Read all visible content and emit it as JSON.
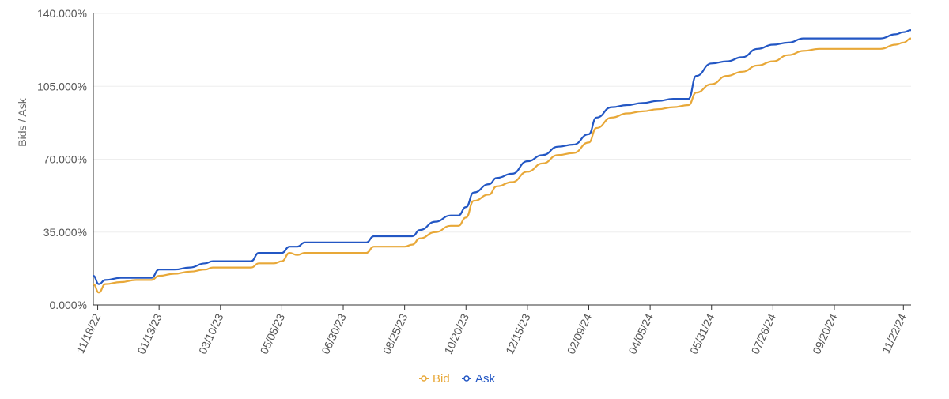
{
  "chart_data": {
    "type": "line",
    "ylabel": "Bids / Ask",
    "xlabel": "",
    "ylim": [
      0,
      140
    ],
    "yticks": [
      0,
      35,
      70,
      105,
      140
    ],
    "ytick_labels": [
      "0.000%",
      "35.000%",
      "70.000%",
      "105.000%",
      "140.000%"
    ],
    "x_range": [
      "2022-11-14",
      "2024-11-29"
    ],
    "xticks": [
      "2022-11-18",
      "2023-01-13",
      "2023-03-10",
      "2023-05-05",
      "2023-06-30",
      "2023-08-25",
      "2023-10-20",
      "2023-12-15",
      "2024-02-09",
      "2024-04-05",
      "2024-05-31",
      "2024-07-26",
      "2024-09-20",
      "2024-11-22"
    ],
    "xtick_labels": [
      "11/18/22",
      "01/13/23",
      "03/10/23",
      "05/05/23",
      "06/30/23",
      "08/25/23",
      "10/20/23",
      "12/15/23",
      "02/09/24",
      "04/05/24",
      "05/31/24",
      "07/26/24",
      "09/20/24",
      "11/22/24"
    ],
    "grid": "horizontal",
    "legend_position": "bottom-center",
    "series": [
      {
        "name": "Bid",
        "color": "#E8A838",
        "points": [
          [
            "2022-11-14",
            10
          ],
          [
            "2022-11-19",
            6
          ],
          [
            "2022-11-25",
            10
          ],
          [
            "2022-12-09",
            11
          ],
          [
            "2022-12-23",
            12
          ],
          [
            "2023-01-06",
            12
          ],
          [
            "2023-01-13",
            14
          ],
          [
            "2023-01-27",
            15
          ],
          [
            "2023-02-10",
            16
          ],
          [
            "2023-02-24",
            17
          ],
          [
            "2023-03-03",
            18
          ],
          [
            "2023-03-17",
            18
          ],
          [
            "2023-04-07",
            18
          ],
          [
            "2023-04-14",
            20
          ],
          [
            "2023-04-28",
            20
          ],
          [
            "2023-05-05",
            21
          ],
          [
            "2023-05-12",
            25
          ],
          [
            "2023-05-19",
            24
          ],
          [
            "2023-05-26",
            25
          ],
          [
            "2023-06-30",
            25
          ],
          [
            "2023-07-21",
            25
          ],
          [
            "2023-07-28",
            28
          ],
          [
            "2023-08-25",
            28
          ],
          [
            "2023-09-01",
            29
          ],
          [
            "2023-09-08",
            32
          ],
          [
            "2023-09-22",
            35
          ],
          [
            "2023-10-06",
            38
          ],
          [
            "2023-10-13",
            38
          ],
          [
            "2023-10-20",
            42
          ],
          [
            "2023-10-27",
            50
          ],
          [
            "2023-11-10",
            53
          ],
          [
            "2023-11-17",
            57
          ],
          [
            "2023-12-01",
            59
          ],
          [
            "2023-12-15",
            64
          ],
          [
            "2023-12-29",
            68
          ],
          [
            "2024-01-12",
            72
          ],
          [
            "2024-01-26",
            73
          ],
          [
            "2024-02-09",
            78
          ],
          [
            "2024-02-16",
            85
          ],
          [
            "2024-03-01",
            90
          ],
          [
            "2024-03-15",
            92
          ],
          [
            "2024-03-29",
            93
          ],
          [
            "2024-04-12",
            94
          ],
          [
            "2024-04-26",
            95
          ],
          [
            "2024-05-10",
            96
          ],
          [
            "2024-05-17",
            102
          ],
          [
            "2024-05-31",
            106
          ],
          [
            "2024-06-14",
            110
          ],
          [
            "2024-06-28",
            112
          ],
          [
            "2024-07-12",
            115
          ],
          [
            "2024-07-26",
            117
          ],
          [
            "2024-08-09",
            120
          ],
          [
            "2024-08-23",
            122
          ],
          [
            "2024-09-06",
            123
          ],
          [
            "2024-10-04",
            123
          ],
          [
            "2024-11-01",
            123
          ],
          [
            "2024-11-15",
            125
          ],
          [
            "2024-11-22",
            126
          ],
          [
            "2024-11-29",
            128
          ]
        ]
      },
      {
        "name": "Ask",
        "color": "#2357C4",
        "points": [
          [
            "2022-11-14",
            14
          ],
          [
            "2022-11-19",
            10
          ],
          [
            "2022-11-25",
            12
          ],
          [
            "2022-12-09",
            13
          ],
          [
            "2022-12-23",
            13
          ],
          [
            "2023-01-06",
            13
          ],
          [
            "2023-01-13",
            17
          ],
          [
            "2023-01-27",
            17
          ],
          [
            "2023-02-10",
            18
          ],
          [
            "2023-02-24",
            20
          ],
          [
            "2023-03-03",
            21
          ],
          [
            "2023-03-17",
            21
          ],
          [
            "2023-04-07",
            21
          ],
          [
            "2023-04-14",
            25
          ],
          [
            "2023-04-28",
            25
          ],
          [
            "2023-05-05",
            25
          ],
          [
            "2023-05-12",
            28
          ],
          [
            "2023-05-19",
            28
          ],
          [
            "2023-05-26",
            30
          ],
          [
            "2023-06-30",
            30
          ],
          [
            "2023-07-21",
            30
          ],
          [
            "2023-07-28",
            33
          ],
          [
            "2023-08-25",
            33
          ],
          [
            "2023-09-01",
            33
          ],
          [
            "2023-09-08",
            36
          ],
          [
            "2023-09-22",
            40
          ],
          [
            "2023-10-06",
            43
          ],
          [
            "2023-10-13",
            43
          ],
          [
            "2023-10-20",
            47
          ],
          [
            "2023-10-27",
            54
          ],
          [
            "2023-11-10",
            58
          ],
          [
            "2023-11-17",
            61
          ],
          [
            "2023-12-01",
            63
          ],
          [
            "2023-12-15",
            69
          ],
          [
            "2023-12-29",
            72
          ],
          [
            "2024-01-12",
            76
          ],
          [
            "2024-01-26",
            77
          ],
          [
            "2024-02-09",
            82
          ],
          [
            "2024-02-16",
            90
          ],
          [
            "2024-03-01",
            95
          ],
          [
            "2024-03-15",
            96
          ],
          [
            "2024-03-29",
            97
          ],
          [
            "2024-04-12",
            98
          ],
          [
            "2024-04-26",
            99
          ],
          [
            "2024-05-10",
            99
          ],
          [
            "2024-05-17",
            110
          ],
          [
            "2024-05-31",
            116
          ],
          [
            "2024-06-14",
            117
          ],
          [
            "2024-06-28",
            119
          ],
          [
            "2024-07-12",
            123
          ],
          [
            "2024-07-26",
            125
          ],
          [
            "2024-08-09",
            126
          ],
          [
            "2024-08-23",
            128
          ],
          [
            "2024-09-06",
            128
          ],
          [
            "2024-10-04",
            128
          ],
          [
            "2024-11-01",
            128
          ],
          [
            "2024-11-15",
            130
          ],
          [
            "2024-11-22",
            131
          ],
          [
            "2024-11-29",
            132
          ]
        ]
      }
    ]
  }
}
